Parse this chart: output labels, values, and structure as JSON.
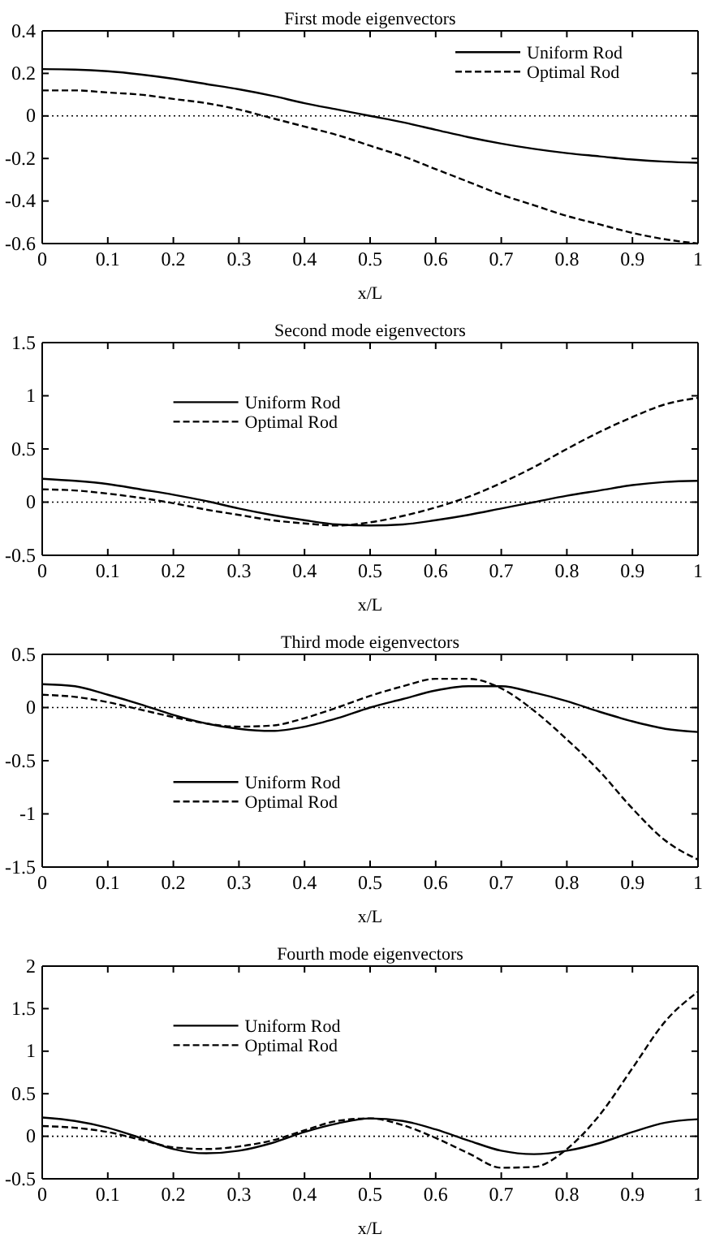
{
  "chart_data": [
    {
      "type": "line",
      "title": "First mode eigenvectors",
      "xlabel": "x/L",
      "x": [
        0,
        0.05,
        0.1,
        0.15,
        0.2,
        0.25,
        0.3,
        0.35,
        0.4,
        0.45,
        0.5,
        0.55,
        0.6,
        0.65,
        0.7,
        0.75,
        0.8,
        0.85,
        0.9,
        0.95,
        1
      ],
      "xlim": [
        0,
        1
      ],
      "xticks": [
        0,
        0.1,
        0.2,
        0.3,
        0.4,
        0.5,
        0.6,
        0.7,
        0.8,
        0.9,
        1
      ],
      "ylim": [
        -0.6,
        0.4
      ],
      "yticks": [
        -0.6,
        -0.4,
        -0.2,
        0,
        0.2,
        0.4
      ],
      "grid": false,
      "legend": "top right",
      "ref_lines": [
        {
          "axis": "y",
          "value": 0,
          "color": "#000000",
          "line_style": "dotted"
        }
      ],
      "series": [
        {
          "name": "Uniform Rod",
          "color": "#000000",
          "line_style": "solid",
          "values": [
            0.22,
            0.218,
            0.21,
            0.195,
            0.175,
            0.15,
            0.125,
            0.095,
            0.06,
            0.03,
            0,
            -0.03,
            -0.065,
            -0.1,
            -0.13,
            -0.155,
            -0.175,
            -0.19,
            -0.205,
            -0.215,
            -0.22
          ]
        },
        {
          "name": "Optimal Rod",
          "color": "#000000",
          "line_style": "dashed",
          "values": [
            0.12,
            0.12,
            0.11,
            0.1,
            0.08,
            0.06,
            0.03,
            -0.01,
            -0.05,
            -0.09,
            -0.14,
            -0.19,
            -0.25,
            -0.31,
            -0.37,
            -0.42,
            -0.47,
            -0.51,
            -0.55,
            -0.58,
            -0.6
          ]
        }
      ]
    },
    {
      "type": "line",
      "title": "Second mode eigenvectors",
      "xlabel": "x/L",
      "x": [
        0,
        0.05,
        0.1,
        0.15,
        0.2,
        0.25,
        0.3,
        0.35,
        0.4,
        0.45,
        0.5,
        0.55,
        0.6,
        0.65,
        0.7,
        0.75,
        0.8,
        0.85,
        0.9,
        0.95,
        1
      ],
      "xlim": [
        0,
        1
      ],
      "xticks": [
        0,
        0.1,
        0.2,
        0.3,
        0.4,
        0.5,
        0.6,
        0.7,
        0.8,
        0.9,
        1
      ],
      "ylim": [
        -0.5,
        1.5
      ],
      "yticks": [
        -0.5,
        0,
        0.5,
        1,
        1.5
      ],
      "grid": false,
      "legend": "left",
      "ref_lines": [
        {
          "axis": "y",
          "value": 0,
          "color": "#000000",
          "line_style": "dotted"
        }
      ],
      "series": [
        {
          "name": "Uniform Rod",
          "color": "#000000",
          "line_style": "solid",
          "values": [
            0.22,
            0.2,
            0.17,
            0.12,
            0.07,
            0.01,
            -0.06,
            -0.12,
            -0.17,
            -0.21,
            -0.22,
            -0.21,
            -0.17,
            -0.12,
            -0.06,
            0,
            0.06,
            0.11,
            0.16,
            0.19,
            0.2
          ]
        },
        {
          "name": "Optimal Rod",
          "color": "#000000",
          "line_style": "dashed",
          "values": [
            0.12,
            0.11,
            0.08,
            0.04,
            -0.01,
            -0.07,
            -0.12,
            -0.17,
            -0.2,
            -0.22,
            -0.19,
            -0.13,
            -0.05,
            0.05,
            0.18,
            0.33,
            0.5,
            0.66,
            0.8,
            0.92,
            0.98
          ]
        }
      ]
    },
    {
      "type": "line",
      "title": "Third mode eigenvectors",
      "xlabel": "x/L",
      "x": [
        0,
        0.05,
        0.1,
        0.15,
        0.2,
        0.25,
        0.3,
        0.35,
        0.4,
        0.45,
        0.5,
        0.55,
        0.6,
        0.65,
        0.7,
        0.75,
        0.8,
        0.85,
        0.9,
        0.95,
        1
      ],
      "xlim": [
        0,
        1
      ],
      "xticks": [
        0,
        0.1,
        0.2,
        0.3,
        0.4,
        0.5,
        0.6,
        0.7,
        0.8,
        0.9,
        1
      ],
      "ylim": [
        -1.5,
        0.5
      ],
      "yticks": [
        -1.5,
        -1,
        -0.5,
        0,
        0.5
      ],
      "grid": false,
      "legend": "bottom left",
      "ref_lines": [
        {
          "axis": "y",
          "value": 0,
          "color": "#000000",
          "line_style": "dotted"
        }
      ],
      "series": [
        {
          "name": "Uniform Rod",
          "color": "#000000",
          "line_style": "solid",
          "values": [
            0.22,
            0.2,
            0.12,
            0.03,
            -0.07,
            -0.15,
            -0.2,
            -0.22,
            -0.18,
            -0.1,
            0,
            0.08,
            0.16,
            0.2,
            0.2,
            0.14,
            0.06,
            -0.04,
            -0.13,
            -0.2,
            -0.23
          ]
        },
        {
          "name": "Optimal Rod",
          "color": "#000000",
          "line_style": "dashed",
          "values": [
            0.12,
            0.1,
            0.05,
            -0.02,
            -0.09,
            -0.15,
            -0.18,
            -0.17,
            -0.1,
            0,
            0.11,
            0.2,
            0.27,
            0.27,
            0.18,
            -0.03,
            -0.3,
            -0.6,
            -0.95,
            -1.25,
            -1.43
          ]
        }
      ]
    },
    {
      "type": "line",
      "title": "Fourth mode eigenvectors",
      "xlabel": "x/L",
      "x": [
        0,
        0.05,
        0.1,
        0.15,
        0.2,
        0.25,
        0.3,
        0.35,
        0.4,
        0.45,
        0.5,
        0.55,
        0.6,
        0.65,
        0.7,
        0.75,
        0.8,
        0.85,
        0.9,
        0.95,
        1
      ],
      "xlim": [
        0,
        1
      ],
      "xticks": [
        0,
        0.1,
        0.2,
        0.3,
        0.4,
        0.5,
        0.6,
        0.7,
        0.8,
        0.9,
        1
      ],
      "ylim": [
        -0.5,
        2
      ],
      "yticks": [
        -0.5,
        0,
        0.5,
        1,
        1.5,
        2
      ],
      "grid": false,
      "legend": "left",
      "ref_lines": [
        {
          "axis": "y",
          "value": 0,
          "color": "#000000",
          "line_style": "dotted"
        }
      ],
      "series": [
        {
          "name": "Uniform Rod",
          "color": "#000000",
          "line_style": "solid",
          "values": [
            0.22,
            0.18,
            0.1,
            -0.02,
            -0.15,
            -0.2,
            -0.17,
            -0.08,
            0.05,
            0.15,
            0.21,
            0.18,
            0.08,
            -0.05,
            -0.17,
            -0.21,
            -0.17,
            -0.08,
            0.05,
            0.16,
            0.2
          ]
        },
        {
          "name": "Optimal Rod",
          "color": "#000000",
          "line_style": "dashed",
          "values": [
            0.12,
            0.1,
            0.05,
            -0.04,
            -0.13,
            -0.15,
            -0.12,
            -0.05,
            0.07,
            0.18,
            0.21,
            0.13,
            -0.02,
            -0.2,
            -0.37,
            -0.36,
            -0.15,
            0.25,
            0.8,
            1.35,
            1.7
          ]
        }
      ]
    }
  ]
}
